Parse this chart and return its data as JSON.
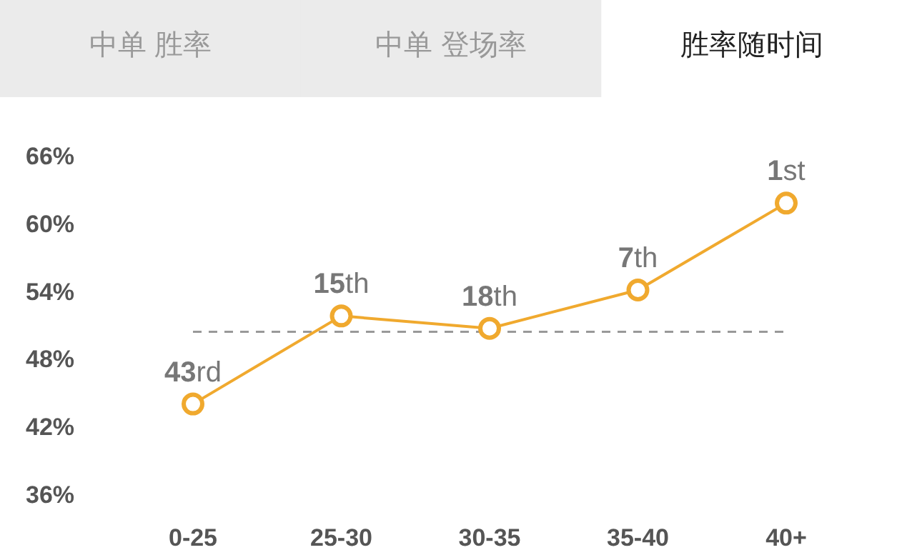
{
  "chart_data": {
    "type": "line",
    "title": "胜率随时间",
    "annotations": [
      "中单 胜率",
      "中单 登场率",
      {
        "text": "43rd",
        "x": "0-25",
        "y": 44.0
      },
      {
        "text": "15th",
        "x": "25-30",
        "y": 51.8
      },
      {
        "text": "18th",
        "x": "30-35",
        "y": 50.7
      },
      {
        "text": "7th",
        "x": "35-40",
        "y": 54.1
      },
      {
        "text": "1st",
        "x": "40+",
        "y": 61.8
      }
    ],
    "categories": [
      "0-25",
      "25-30",
      "30-35",
      "35-40",
      "40+"
    ],
    "series": [
      {
        "color": "#f0a92e",
        "values": [
          44.0,
          51.8,
          50.7,
          54.1,
          61.8
        ]
      }
    ],
    "ylim": [
      36,
      66
    ],
    "yticks": [
      {
        "value": 36,
        "label": "36%"
      },
      {
        "value": 42,
        "label": "42%"
      },
      {
        "value": 48,
        "label": "48%"
      },
      {
        "value": 54,
        "label": "54%"
      },
      {
        "value": 60,
        "label": "60%"
      },
      {
        "value": 66,
        "label": "66%"
      }
    ],
    "ref_lines": [
      {
        "axis": "y",
        "value": 50.4,
        "color": "#999999",
        "line_style": "dashed"
      }
    ],
    "grid": false,
    "marker": "circle",
    "line_style": "solid"
  }
}
